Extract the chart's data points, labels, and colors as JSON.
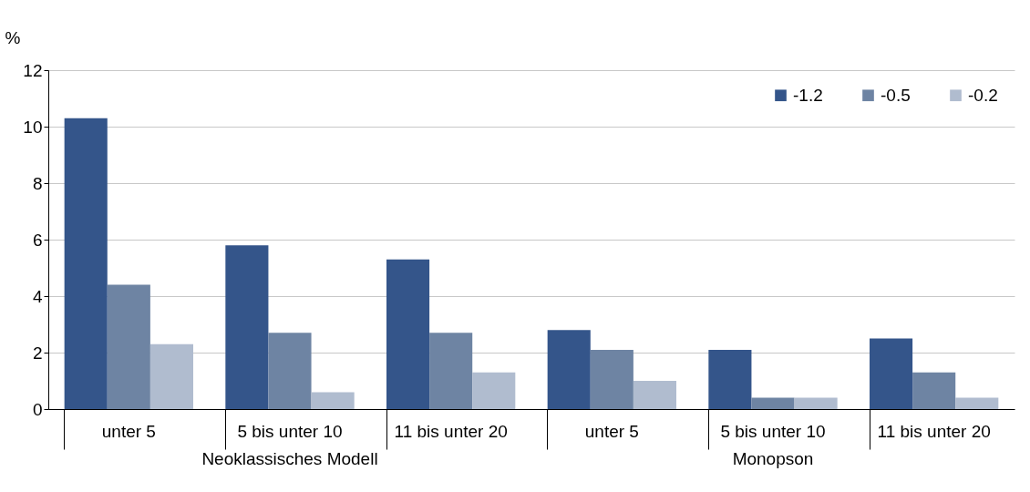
{
  "chart_data": {
    "type": "bar",
    "ylabel": "%",
    "categories": [
      "unter 5",
      "5 bis unter 10",
      "11 bis unter 20",
      "unter 5",
      "5 bis unter 10",
      "11 bis unter 20"
    ],
    "series": [
      {
        "name": "-1.2",
        "color": "#34558a",
        "values": [
          10.3,
          5.8,
          5.3,
          2.8,
          2.1,
          2.5
        ]
      },
      {
        "name": "-0.5",
        "color": "#6e84a3",
        "values": [
          4.4,
          2.7,
          2.7,
          2.1,
          0.4,
          1.3
        ]
      },
      {
        "name": "-0.2",
        "color": "#b0bccf",
        "values": [
          2.3,
          0.6,
          1.3,
          1.0,
          0.4,
          0.4
        ]
      }
    ],
    "ylim": [
      0,
      12
    ],
    "yticks": [
      0,
      2,
      4,
      6,
      8,
      10,
      12
    ],
    "grid": "y",
    "legend": "top right",
    "annotations": [
      "Neoklassisches Modell",
      "Monopson"
    ]
  }
}
